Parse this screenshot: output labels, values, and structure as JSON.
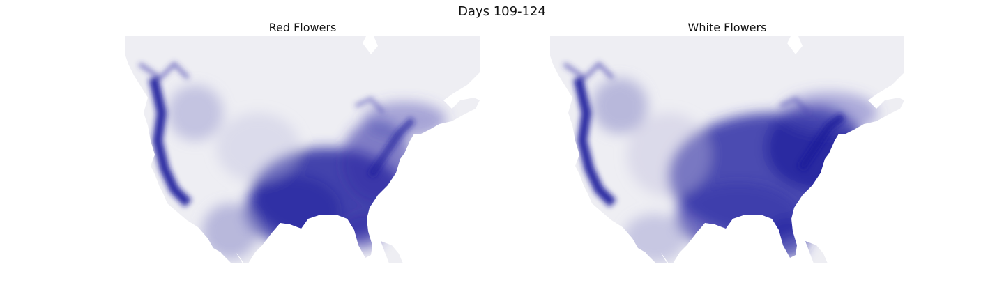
{
  "figure": {
    "title": "Days 109-124"
  },
  "panels": [
    {
      "title": "Red Flowers"
    },
    {
      "title": "White Flowers"
    }
  ],
  "colors": {
    "low": "#eeeef3",
    "high": "#1b1a9a",
    "background": "#ffffff"
  }
}
